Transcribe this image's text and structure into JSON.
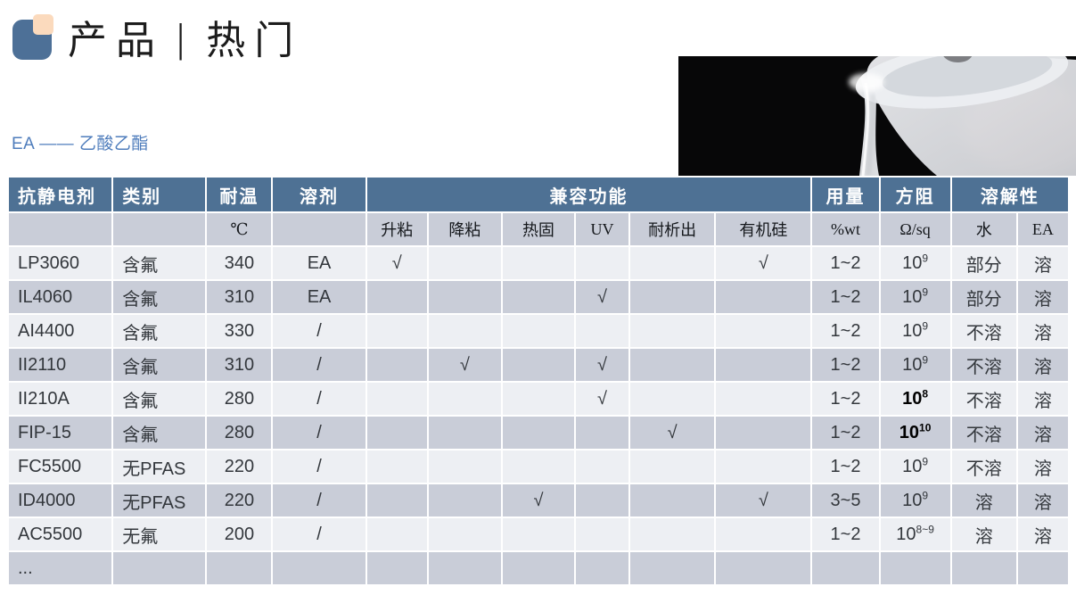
{
  "page": {
    "title_left": "产品",
    "title_separator": "|",
    "title_right": "热门",
    "subtitle": "EA —— 乙酸乙酯"
  },
  "colors": {
    "header_bg": "#4e7194",
    "row_light": "#edeff3",
    "row_dark": "#c9cdd8",
    "subtitle_blue": "#4f7dbc",
    "logo_blue": "#4d7097",
    "logo_peach": "#fbdabd"
  },
  "table": {
    "top_headers": [
      {
        "label": "抗静电剂"
      },
      {
        "label": "类别"
      },
      {
        "label": "耐温"
      },
      {
        "label": "溶剂"
      },
      {
        "label": "兼容功能"
      },
      {
        "label": "用量"
      },
      {
        "label": "方阻"
      },
      {
        "label": "溶解性"
      }
    ],
    "sub_headers": [
      "",
      "",
      "℃",
      "",
      "升粘",
      "降粘",
      "热固",
      "UV",
      "耐析出",
      "有机硅",
      "%wt",
      "Ω/sq",
      "水",
      "EA"
    ],
    "checkmark": "√",
    "rows": [
      {
        "name": "LP3060",
        "category": "含氟",
        "temp": "340",
        "solvent": "EA",
        "compat": [
          "√",
          "",
          "",
          "",
          "",
          "√"
        ],
        "dosage": "1~2",
        "resistance": {
          "base": "10",
          "exp": "9",
          "bold": false
        },
        "water": "部分",
        "ea": "溶"
      },
      {
        "name": "IL4060",
        "category": "含氟",
        "temp": "310",
        "solvent": "EA",
        "compat": [
          "",
          "",
          "",
          "√",
          "",
          ""
        ],
        "dosage": "1~2",
        "resistance": {
          "base": "10",
          "exp": "9",
          "bold": false
        },
        "water": "部分",
        "ea": "溶"
      },
      {
        "name": "AI4400",
        "category": "含氟",
        "temp": "330",
        "solvent": "/",
        "compat": [
          "",
          "",
          "",
          "",
          "",
          ""
        ],
        "dosage": "1~2",
        "resistance": {
          "base": "10",
          "exp": "9",
          "bold": false
        },
        "water": "不溶",
        "ea": "溶"
      },
      {
        "name": "II2110",
        "category": "含氟",
        "temp": "310",
        "solvent": "/",
        "compat": [
          "",
          "√",
          "",
          "√",
          "",
          ""
        ],
        "dosage": "1~2",
        "resistance": {
          "base": "10",
          "exp": "9",
          "bold": false
        },
        "water": "不溶",
        "ea": "溶"
      },
      {
        "name": "II210A",
        "category": "含氟",
        "temp": "280",
        "solvent": "/",
        "compat": [
          "",
          "",
          "",
          "√",
          "",
          ""
        ],
        "dosage": "1~2",
        "resistance": {
          "base": "10",
          "exp": "8",
          "bold": true
        },
        "water": "不溶",
        "ea": "溶"
      },
      {
        "name": "FIP-15",
        "category": "含氟",
        "temp": "280",
        "solvent": "/",
        "compat": [
          "",
          "",
          "",
          "",
          "√",
          ""
        ],
        "dosage": "1~2",
        "resistance": {
          "base": "10",
          "exp": "10",
          "bold": true
        },
        "water": "不溶",
        "ea": "溶"
      },
      {
        "name": "FC5500",
        "category": "无PFAS",
        "temp": "220",
        "solvent": "/",
        "compat": [
          "",
          "",
          "",
          "",
          "",
          ""
        ],
        "dosage": "1~2",
        "resistance": {
          "base": "10",
          "exp": "9",
          "bold": false
        },
        "water": "不溶",
        "ea": "溶"
      },
      {
        "name": "ID4000",
        "category": "无PFAS",
        "temp": "220",
        "solvent": "/",
        "compat": [
          "",
          "",
          "√",
          "",
          "",
          "√"
        ],
        "dosage": "3~5",
        "resistance": {
          "base": "10",
          "exp": "9",
          "bold": false
        },
        "water": "溶",
        "ea": "溶"
      },
      {
        "name": "AC5500",
        "category": "无氟",
        "temp": "200",
        "solvent": "/",
        "compat": [
          "",
          "",
          "",
          "",
          "",
          ""
        ],
        "dosage": "1~2",
        "resistance": {
          "base": "10",
          "exp": "8~9",
          "bold": false
        },
        "water": "溶",
        "ea": "溶"
      },
      {
        "name": "...",
        "category": "",
        "temp": "",
        "solvent": "",
        "compat": [
          "",
          "",
          "",
          "",
          "",
          ""
        ],
        "dosage": "",
        "resistance": null,
        "water": "",
        "ea": ""
      }
    ]
  }
}
